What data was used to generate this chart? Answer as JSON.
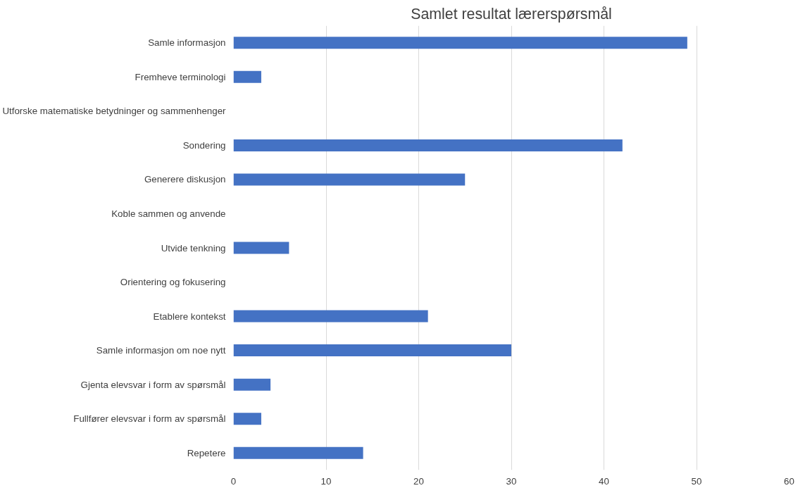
{
  "chart_data": {
    "type": "bar",
    "orientation": "horizontal",
    "title": "Samlet resultat lærerspørsmål",
    "categories": [
      "Samle informasjon",
      "Fremheve terminologi",
      "Utforske matematiske betydninger og sammenhenger",
      "Sondering",
      "Generere diskusjon",
      "Koble sammen og anvende",
      "Utvide tenkning",
      "Orientering og fokusering",
      "Etablere kontekst",
      "Samle informasjon om noe nytt",
      "Gjenta elevsvar i form av spørsmål",
      "Fullfører elevsvar i form av spørsmål",
      "Repetere"
    ],
    "values": [
      49,
      3,
      0,
      42,
      25,
      0,
      6,
      0,
      21,
      30,
      4,
      3,
      14
    ],
    "color": "#4472c4",
    "xlim": [
      0,
      60
    ],
    "xticks": [
      0,
      10,
      20,
      30,
      40,
      50,
      60
    ],
    "grid": "x"
  }
}
